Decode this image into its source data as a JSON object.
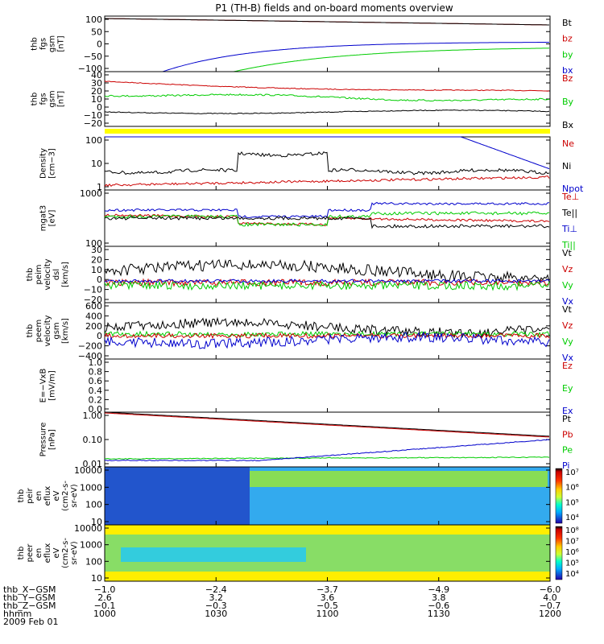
{
  "title": "P1 (TH-B) fields and on-board moments overview",
  "colors": {
    "black": "#000000",
    "red": "#cc0000",
    "green": "#00cc00",
    "blue": "#0000cc",
    "yellow": "#ffff00"
  },
  "chart_data": [
    {
      "id": "panel1",
      "type": "line",
      "ylabel": [
        "thb",
        "fgs",
        "gsm",
        "[nT]"
      ],
      "yticks": [
        "100",
        "50",
        "0",
        "−50",
        "−100"
      ],
      "ylim": [
        -100,
        110
      ],
      "legend": [
        {
          "name": "Bt",
          "color": "#000000"
        },
        {
          "name": "bz",
          "color": "#cc0000"
        },
        {
          "name": "by",
          "color": "#00cc00"
        },
        {
          "name": "bx",
          "color": "#0000cc"
        }
      ]
    },
    {
      "id": "panel2",
      "type": "line",
      "ylabel": [
        "thb",
        "fgs",
        "gsm",
        "[nT]"
      ],
      "yticks": [
        "40",
        "30",
        "20",
        "10",
        "0",
        "−10",
        "−20"
      ],
      "ylim": [
        -22,
        40
      ],
      "legend": [
        {
          "name": "Bz",
          "color": "#cc0000"
        },
        {
          "name": "By",
          "color": "#00cc00"
        },
        {
          "name": "Bx",
          "color": "#000000"
        }
      ]
    },
    {
      "id": "panel3",
      "type": "line",
      "ylabel": [
        "Density",
        "[cm−3]"
      ],
      "yticks": [
        "100",
        "10",
        "1"
      ],
      "yscale": "log",
      "legend": [
        {
          "name": "Ne",
          "color": "#cc0000"
        },
        {
          "name": "Ni",
          "color": "#000000"
        },
        {
          "name": "Npot",
          "color": "#0000cc"
        }
      ]
    },
    {
      "id": "panel4",
      "type": "line",
      "ylabel": [
        "mgat3",
        "[eV]"
      ],
      "yticks": [
        "1000",
        "100"
      ],
      "yscale": "log",
      "legend": [
        {
          "name": "Te⊥",
          "color": "#cc0000"
        },
        {
          "name": "Te||",
          "color": "#000000"
        },
        {
          "name": "Ti⊥",
          "color": "#0000cc"
        },
        {
          "name": "Ti||",
          "color": "#00cc00"
        }
      ]
    },
    {
      "id": "panel5",
      "type": "line",
      "ylabel": [
        "thb",
        "peim",
        "velocity",
        "dsl",
        "[km/s]"
      ],
      "yticks": [
        "30",
        "20",
        "10",
        "0",
        "−10",
        "−20"
      ],
      "ylim": [
        -20,
        30
      ],
      "legend": [
        {
          "name": "Vt",
          "color": "#000000"
        },
        {
          "name": "Vz",
          "color": "#cc0000"
        },
        {
          "name": "Vy",
          "color": "#00cc00"
        },
        {
          "name": "Vx",
          "color": "#0000cc"
        }
      ]
    },
    {
      "id": "panel6",
      "type": "line",
      "ylabel": [
        "thb",
        "peem",
        "velocity",
        "gsm",
        "[km/s]"
      ],
      "yticks": [
        "600",
        "400",
        "200",
        "0",
        "−200",
        "−400"
      ],
      "ylim": [
        -400,
        600
      ],
      "legend": [
        {
          "name": "Vt",
          "color": "#000000"
        },
        {
          "name": "Vz",
          "color": "#cc0000"
        },
        {
          "name": "Vy",
          "color": "#00cc00"
        },
        {
          "name": "Vx",
          "color": "#0000cc"
        }
      ]
    },
    {
      "id": "panel7",
      "type": "line",
      "ylabel": [
        "E=−VxB",
        "[mV/m]"
      ],
      "yticks": [
        "1.0",
        "0.8",
        "0.6",
        "0.4",
        "0.2",
        "0.0"
      ],
      "ylim": [
        0,
        1
      ],
      "legend": [
        {
          "name": "Ez",
          "color": "#cc0000"
        },
        {
          "name": "Ey",
          "color": "#00cc00"
        },
        {
          "name": "Ex",
          "color": "#0000cc"
        }
      ]
    },
    {
      "id": "panel8",
      "type": "line",
      "ylabel": [
        "Pressure",
        "[nPa]"
      ],
      "yticks": [
        "1.00",
        "0.10",
        "0.01"
      ],
      "yscale": "log",
      "legend": [
        {
          "name": "Pt",
          "color": "#000000"
        },
        {
          "name": "Pb",
          "color": "#cc0000"
        },
        {
          "name": "Pe",
          "color": "#00cc00"
        },
        {
          "name": "Pi",
          "color": "#0000cc"
        }
      ]
    },
    {
      "id": "panel9",
      "type": "heatmap",
      "ylabel": [
        "thb",
        "peir",
        "en",
        "eflux",
        "eV",
        "(cm2-s-",
        "sr-eV)"
      ],
      "yticks": [
        "10000",
        "1000",
        "100",
        "10"
      ],
      "yscale": "log",
      "colorbar_ticks": [
        "10⁷",
        "10⁶",
        "10⁵",
        "10⁴"
      ]
    },
    {
      "id": "panel10",
      "type": "heatmap",
      "ylabel": [
        "thb",
        "peer",
        "en",
        "eflux",
        "eV",
        "(cm2-s-",
        "sr-eV)"
      ],
      "yticks": [
        "10000",
        "1000",
        "100",
        "10"
      ],
      "yscale": "log",
      "colorbar_ticks": [
        "10⁸",
        "10⁷",
        "10⁶",
        "10⁵",
        "10⁴"
      ]
    }
  ],
  "footer": {
    "rows": [
      {
        "label": "thb_X−GSM",
        "values": [
          "−1.0",
          "−2.4",
          "−3.7",
          "−4.9",
          "−6.0"
        ]
      },
      {
        "label": "thb_Y−GSM",
        "values": [
          "2.6",
          "3.2",
          "3.6",
          "3.8",
          "4.0"
        ]
      },
      {
        "label": "thb_Z−GSM",
        "values": [
          "−0.1",
          "−0.3",
          "−0.5",
          "−0.6",
          "−0.7"
        ]
      },
      {
        "label": "hhmm",
        "values": [
          "1000",
          "1030",
          "1100",
          "1130",
          "1200"
        ]
      }
    ],
    "date": "2009 Feb 01"
  }
}
